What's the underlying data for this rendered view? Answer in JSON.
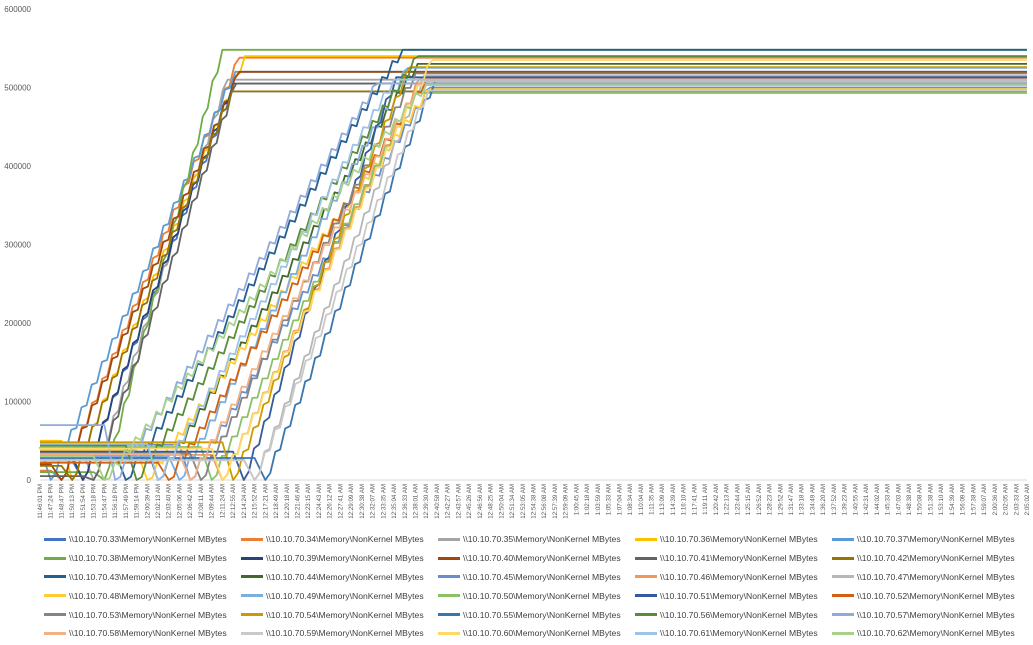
{
  "chart_data": {
    "type": "line",
    "title": "",
    "xlabel": "",
    "ylabel": "",
    "ylim": [
      0,
      600000
    ],
    "y_ticks": [
      "0",
      "100000",
      "200000",
      "300000",
      "400000",
      "500000",
      "600000"
    ],
    "x_ticks": [
      "11:46:01 PM",
      "11:47:24 PM",
      "11:48:47 PM",
      "11:50:13 PM",
      "11:51:54 PM",
      "11:53:18 PM",
      "11:54:47 PM",
      "11:56:18 PM",
      "11:57:49 PM",
      "11:59:14 PM",
      "12:00:39 AM",
      "12:02:13 AM",
      "12:03:40 AM",
      "12:05:06 AM",
      "12:06:42 AM",
      "12:08:11 AM",
      "12:09:44 AM",
      "12:11:24 AM",
      "12:12:55 AM",
      "12:14:24 AM",
      "12:15:52 AM",
      "12:17:21 AM",
      "12:18:49 AM",
      "12:20:18 AM",
      "12:21:46 AM",
      "12:23:15 AM",
      "12:24:43 AM",
      "12:26:12 AM",
      "12:27:41 AM",
      "12:29:09 AM",
      "12:30:38 AM",
      "12:32:07 AM",
      "12:33:35 AM",
      "12:35:04 AM",
      "12:36:33 AM",
      "12:38:01 AM",
      "12:39:30 AM",
      "12:40:58 AM",
      "12:42:27 AM",
      "12:43:57 AM",
      "12:45:26 AM",
      "12:46:56 AM",
      "12:48:25 AM",
      "12:50:04 AM",
      "12:51:34 AM",
      "12:53:05 AM",
      "12:54:38 AM",
      "12:56:08 AM",
      "12:57:39 AM",
      "12:59:09 AM",
      "1:00:45 AM",
      "1:02:18 AM",
      "1:03:59 AM",
      "1:05:33 AM",
      "1:07:04 AM",
      "1:08:34 AM",
      "1:10:04 AM",
      "1:11:35 AM",
      "1:13:09 AM",
      "1:14:39 AM",
      "1:16:10 AM",
      "1:17:41 AM",
      "1:19:11 AM",
      "1:20:42 AM",
      "1:22:13 AM",
      "1:23:44 AM",
      "1:25:15 AM",
      "1:26:52 AM",
      "1:28:23 AM",
      "1:29:52 AM",
      "1:31:47 AM",
      "1:33:18 AM",
      "1:34:49 AM",
      "1:36:20 AM",
      "1:37:52 AM",
      "1:39:23 AM",
      "1:40:55 AM",
      "1:42:31 AM",
      "1:44:02 AM",
      "1:45:33 AM",
      "1:47:03 AM",
      "1:48:38 AM",
      "1:50:08 AM",
      "1:51:38 AM",
      "1:53:10 AM",
      "1:54:39 AM",
      "1:56:09 AM",
      "1:57:38 AM",
      "1:59:07 AM",
      "2:00:36 AM",
      "2:02:05 AM",
      "2:03:33 AM",
      "2:05:02 AM"
    ],
    "grid": false,
    "legend": "bottom",
    "series_names": [
      "\\\\10.10.70.33\\Memory\\NonKernel MBytes",
      "\\\\10.10.70.34\\Memory\\NonKernel MBytes",
      "\\\\10.10.70.35\\Memory\\NonKernel MBytes",
      "\\\\10.10.70.36\\Memory\\NonKernel MBytes",
      "\\\\10.10.70.37\\Memory\\NonKernel MBytes",
      "\\\\10.10.70.38\\Memory\\NonKernel MBytes",
      "\\\\10.10.70.39\\Memory\\NonKernel MBytes",
      "\\\\10.10.70.40\\Memory\\NonKernel MBytes",
      "\\\\10.10.70.41\\Memory\\NonKernel MBytes",
      "\\\\10.10.70.42\\Memory\\NonKernel MBytes",
      "\\\\10.10.70.43\\Memory\\NonKernel MBytes",
      "\\\\10.10.70.44\\Memory\\NonKernel MBytes",
      "\\\\10.10.70.45\\Memory\\NonKernel MBytes",
      "\\\\10.10.70.46\\Memory\\NonKernel MBytes",
      "\\\\10.10.70.47\\Memory\\NonKernel MBytes",
      "\\\\10.10.70.48\\Memory\\NonKernel MBytes",
      "\\\\10.10.70.49\\Memory\\NonKernel MBytes",
      "\\\\10.10.70.50\\Memory\\NonKernel MBytes",
      "\\\\10.10.70.51\\Memory\\NonKernel MBytes",
      "\\\\10.10.70.52\\Memory\\NonKernel MBytes",
      "\\\\10.10.70.53\\Memory\\NonKernel MBytes",
      "\\\\10.10.70.54\\Memory\\NonKernel MBytes",
      "\\\\10.10.70.55\\Memory\\NonKernel MBytes",
      "\\\\10.10.70.56\\Memory\\NonKernel MBytes",
      "\\\\10.10.70.57\\Memory\\NonKernel MBytes",
      "\\\\10.10.70.58\\Memory\\NonKernel MBytes",
      "\\\\10.10.70.59\\Memory\\NonKernel MBytes",
      "\\\\10.10.70.60\\Memory\\NonKernel MBytes",
      "\\\\10.10.70.61\\Memory\\NonKernel MBytes",
      "\\\\10.10.70.62\\Memory\\NonKernel MBytes"
    ],
    "series_colors": [
      "#4472C4",
      "#ED7D31",
      "#A5A5A5",
      "#FFC000",
      "#5B9BD5",
      "#70AD47",
      "#264478",
      "#9E480E",
      "#636363",
      "#997300",
      "#255E91",
      "#43682B",
      "#698ED0",
      "#F1975A",
      "#B7B7B7",
      "#FFCD33",
      "#7CAFDD",
      "#8CC168",
      "#335AA1",
      "#D26012",
      "#848484",
      "#CC9A00",
      "#3A75AD",
      "#5A8B38",
      "#8FAADC",
      "#F4B183",
      "#C9C9C9",
      "#FFD966",
      "#9DC3E6",
      "#A9D18E"
    ],
    "series_start_x": [
      3,
      1,
      4,
      2,
      0,
      5,
      3,
      1,
      4,
      2,
      7,
      10,
      13,
      16,
      19,
      9,
      12,
      15,
      18,
      11,
      14,
      17,
      20,
      8,
      6,
      13,
      19,
      16,
      10,
      5
    ],
    "series_start_y": [
      25000,
      12000,
      35000,
      50000,
      42000,
      10000,
      30000,
      20000,
      5000,
      18000,
      35000,
      40000,
      45000,
      32000,
      26000,
      38000,
      30000,
      42000,
      36000,
      22000,
      34000,
      48000,
      28000,
      44000,
      70000,
      33000,
      25000,
      40000,
      46000,
      30000
    ],
    "series_peak_x": [
      17.8,
      18.6,
      17.5,
      19.1,
      18.2,
      17.0,
      18.0,
      18.6,
      18.3,
      17.9,
      33.8,
      35.2,
      36.4,
      35.5,
      35.8,
      36.4,
      34.3,
      35.0,
      33.2,
      36.0,
      35.0,
      34.5,
      36.8,
      35.3,
      31.5,
      35.6,
      36.2,
      36.6,
      33.0,
      36.0
    ],
    "series_peak_y": [
      495000,
      538000,
      510000,
      540000,
      520000,
      548000,
      505000,
      520000,
      505000,
      495000,
      548000,
      530000,
      500000,
      512000,
      515000,
      498000,
      525000,
      493000,
      513000,
      510000,
      518000,
      526000,
      508000,
      540000,
      505000,
      508000,
      496000,
      535000,
      510000,
      503000
    ]
  },
  "legend_labels": [
    "\\\\10.10.70.33\\Memory\\NonKernel MBytes",
    "\\\\10.10.70.34\\Memory\\NonKernel MBytes",
    "\\\\10.10.70.35\\Memory\\NonKernel MBytes",
    "\\\\10.10.70.36\\Memory\\NonKernel MBytes",
    "\\\\10.10.70.37\\Memory\\NonKernel MBytes",
    "\\\\10.10.70.38\\Memory\\NonKernel MBytes",
    "\\\\10.10.70.39\\Memory\\NonKernel MBytes",
    "\\\\10.10.70.40\\Memory\\NonKernel MBytes",
    "\\\\10.10.70.41\\Memory\\NonKernel MBytes",
    "\\\\10.10.70.42\\Memory\\NonKernel MBytes",
    "\\\\10.10.70.43\\Memory\\NonKernel MBytes",
    "\\\\10.10.70.44\\Memory\\NonKernel MBytes",
    "\\\\10.10.70.45\\Memory\\NonKernel MBytes",
    "\\\\10.10.70.46\\Memory\\NonKernel MBytes",
    "\\\\10.10.70.47\\Memory\\NonKernel MBytes",
    "\\\\10.10.70.48\\Memory\\NonKernel MBytes",
    "\\\\10.10.70.49\\Memory\\NonKernel MBytes",
    "\\\\10.10.70.50\\Memory\\NonKernel MBytes",
    "\\\\10.10.70.51\\Memory\\NonKernel MBytes",
    "\\\\10.10.70.52\\Memory\\NonKernel MBytes",
    "\\\\10.10.70.53\\Memory\\NonKernel MBytes",
    "\\\\10.10.70.54\\Memory\\NonKernel MBytes",
    "\\\\10.10.70.55\\Memory\\NonKernel MBytes",
    "\\\\10.10.70.56\\Memory\\NonKernel MBytes",
    "\\\\10.10.70.57\\Memory\\NonKernel MBytes",
    "\\\\10.10.70.58\\Memory\\NonKernel MBytes",
    "\\\\10.10.70.59\\Memory\\NonKernel MBytes",
    "\\\\10.10.70.60\\Memory\\NonKernel MBytes",
    "\\\\10.10.70.61\\Memory\\NonKernel MBytes",
    "\\\\10.10.70.62\\Memory\\NonKernel MBytes"
  ]
}
